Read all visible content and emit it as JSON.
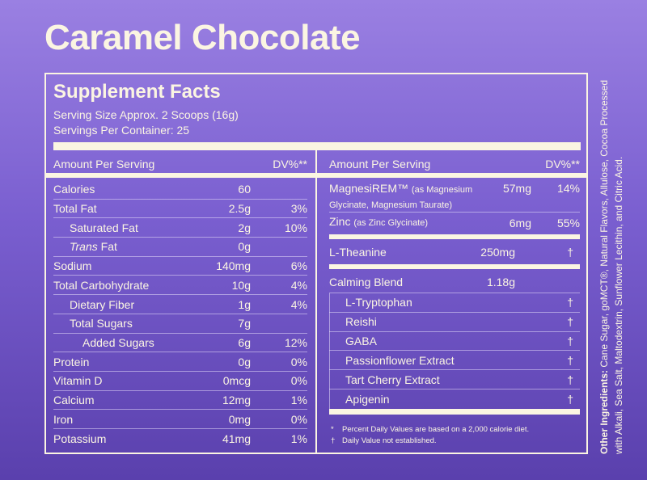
{
  "title": "Caramel Chocolate",
  "facts": {
    "heading": "Supplement Facts",
    "serving_size": "Serving Size Approx. 2 Scoops (16g)",
    "servings_per_container": "Servings Per Container: 25",
    "amount_header": "Amount Per Serving",
    "dv_header": "DV%**",
    "left_rows": [
      {
        "name": "Calories",
        "amount": "60",
        "dv": ""
      },
      {
        "name": "Total Fat",
        "amount": "2.5g",
        "dv": "3%"
      },
      {
        "name": "Saturated Fat",
        "amount": "2g",
        "dv": "10%"
      },
      {
        "name": "Trans",
        "name_suffix": " Fat",
        "amount": "0g",
        "dv": ""
      },
      {
        "name": "Sodium",
        "amount": "140mg",
        "dv": "6%"
      },
      {
        "name": "Total Carbohydrate",
        "amount": "10g",
        "dv": "4%"
      },
      {
        "name": "Dietary Fiber",
        "amount": "1g",
        "dv": "4%"
      },
      {
        "name": "Total Sugars",
        "amount": "7g",
        "dv": ""
      },
      {
        "name": "Added Sugars",
        "amount": "6g",
        "dv": "12%"
      },
      {
        "name": "Protein",
        "amount": "0g",
        "dv": "0%"
      },
      {
        "name": "Vitamin D",
        "amount": "0mcg",
        "dv": "0%"
      },
      {
        "name": "Calcium",
        "amount": "12mg",
        "dv": "1%"
      },
      {
        "name": "Iron",
        "amount": "0mg",
        "dv": "0%"
      },
      {
        "name": "Potassium",
        "amount": "41mg",
        "dv": "1%"
      }
    ],
    "magnesium": {
      "name": "MagnesiREM™",
      "detail": "(as Magnesium",
      "detail2": "Glycinate, Magnesium Taurate)",
      "amount": "57mg",
      "dv": "14%"
    },
    "zinc": {
      "name": "Zinc",
      "detail": "(as Zinc Glycinate)",
      "amount": "6mg",
      "dv": "55%"
    },
    "theanine": {
      "name": "L-Theanine",
      "amount": "250mg",
      "dv": "†"
    },
    "blend": {
      "name": "Calming Blend",
      "amount": "1.18g"
    },
    "blend_items": [
      {
        "name": "L-Tryptophan",
        "dv": "†"
      },
      {
        "name": "Reishi",
        "dv": "†"
      },
      {
        "name": "GABA",
        "dv": "†"
      },
      {
        "name": "Passionflower Extract",
        "dv": "†"
      },
      {
        "name": "Tart Cherry Extract",
        "dv": "†"
      },
      {
        "name": "Apigenin",
        "dv": "†"
      }
    ],
    "footnote1_mark": "*",
    "footnote1": "Percent Daily Values are based on a 2,000 calorie diet.",
    "footnote2_mark": "†",
    "footnote2": "Daily Value not established."
  },
  "other_ingredients": {
    "label": "Other Ingredients:",
    "text": " Cane Sugar, goMCT®, Natural Flavors, Allulose, Cocoa Processed with Alkali, Sea Salt, Maltodextrin, Sunflower Lecithin, and Citric Acid."
  }
}
